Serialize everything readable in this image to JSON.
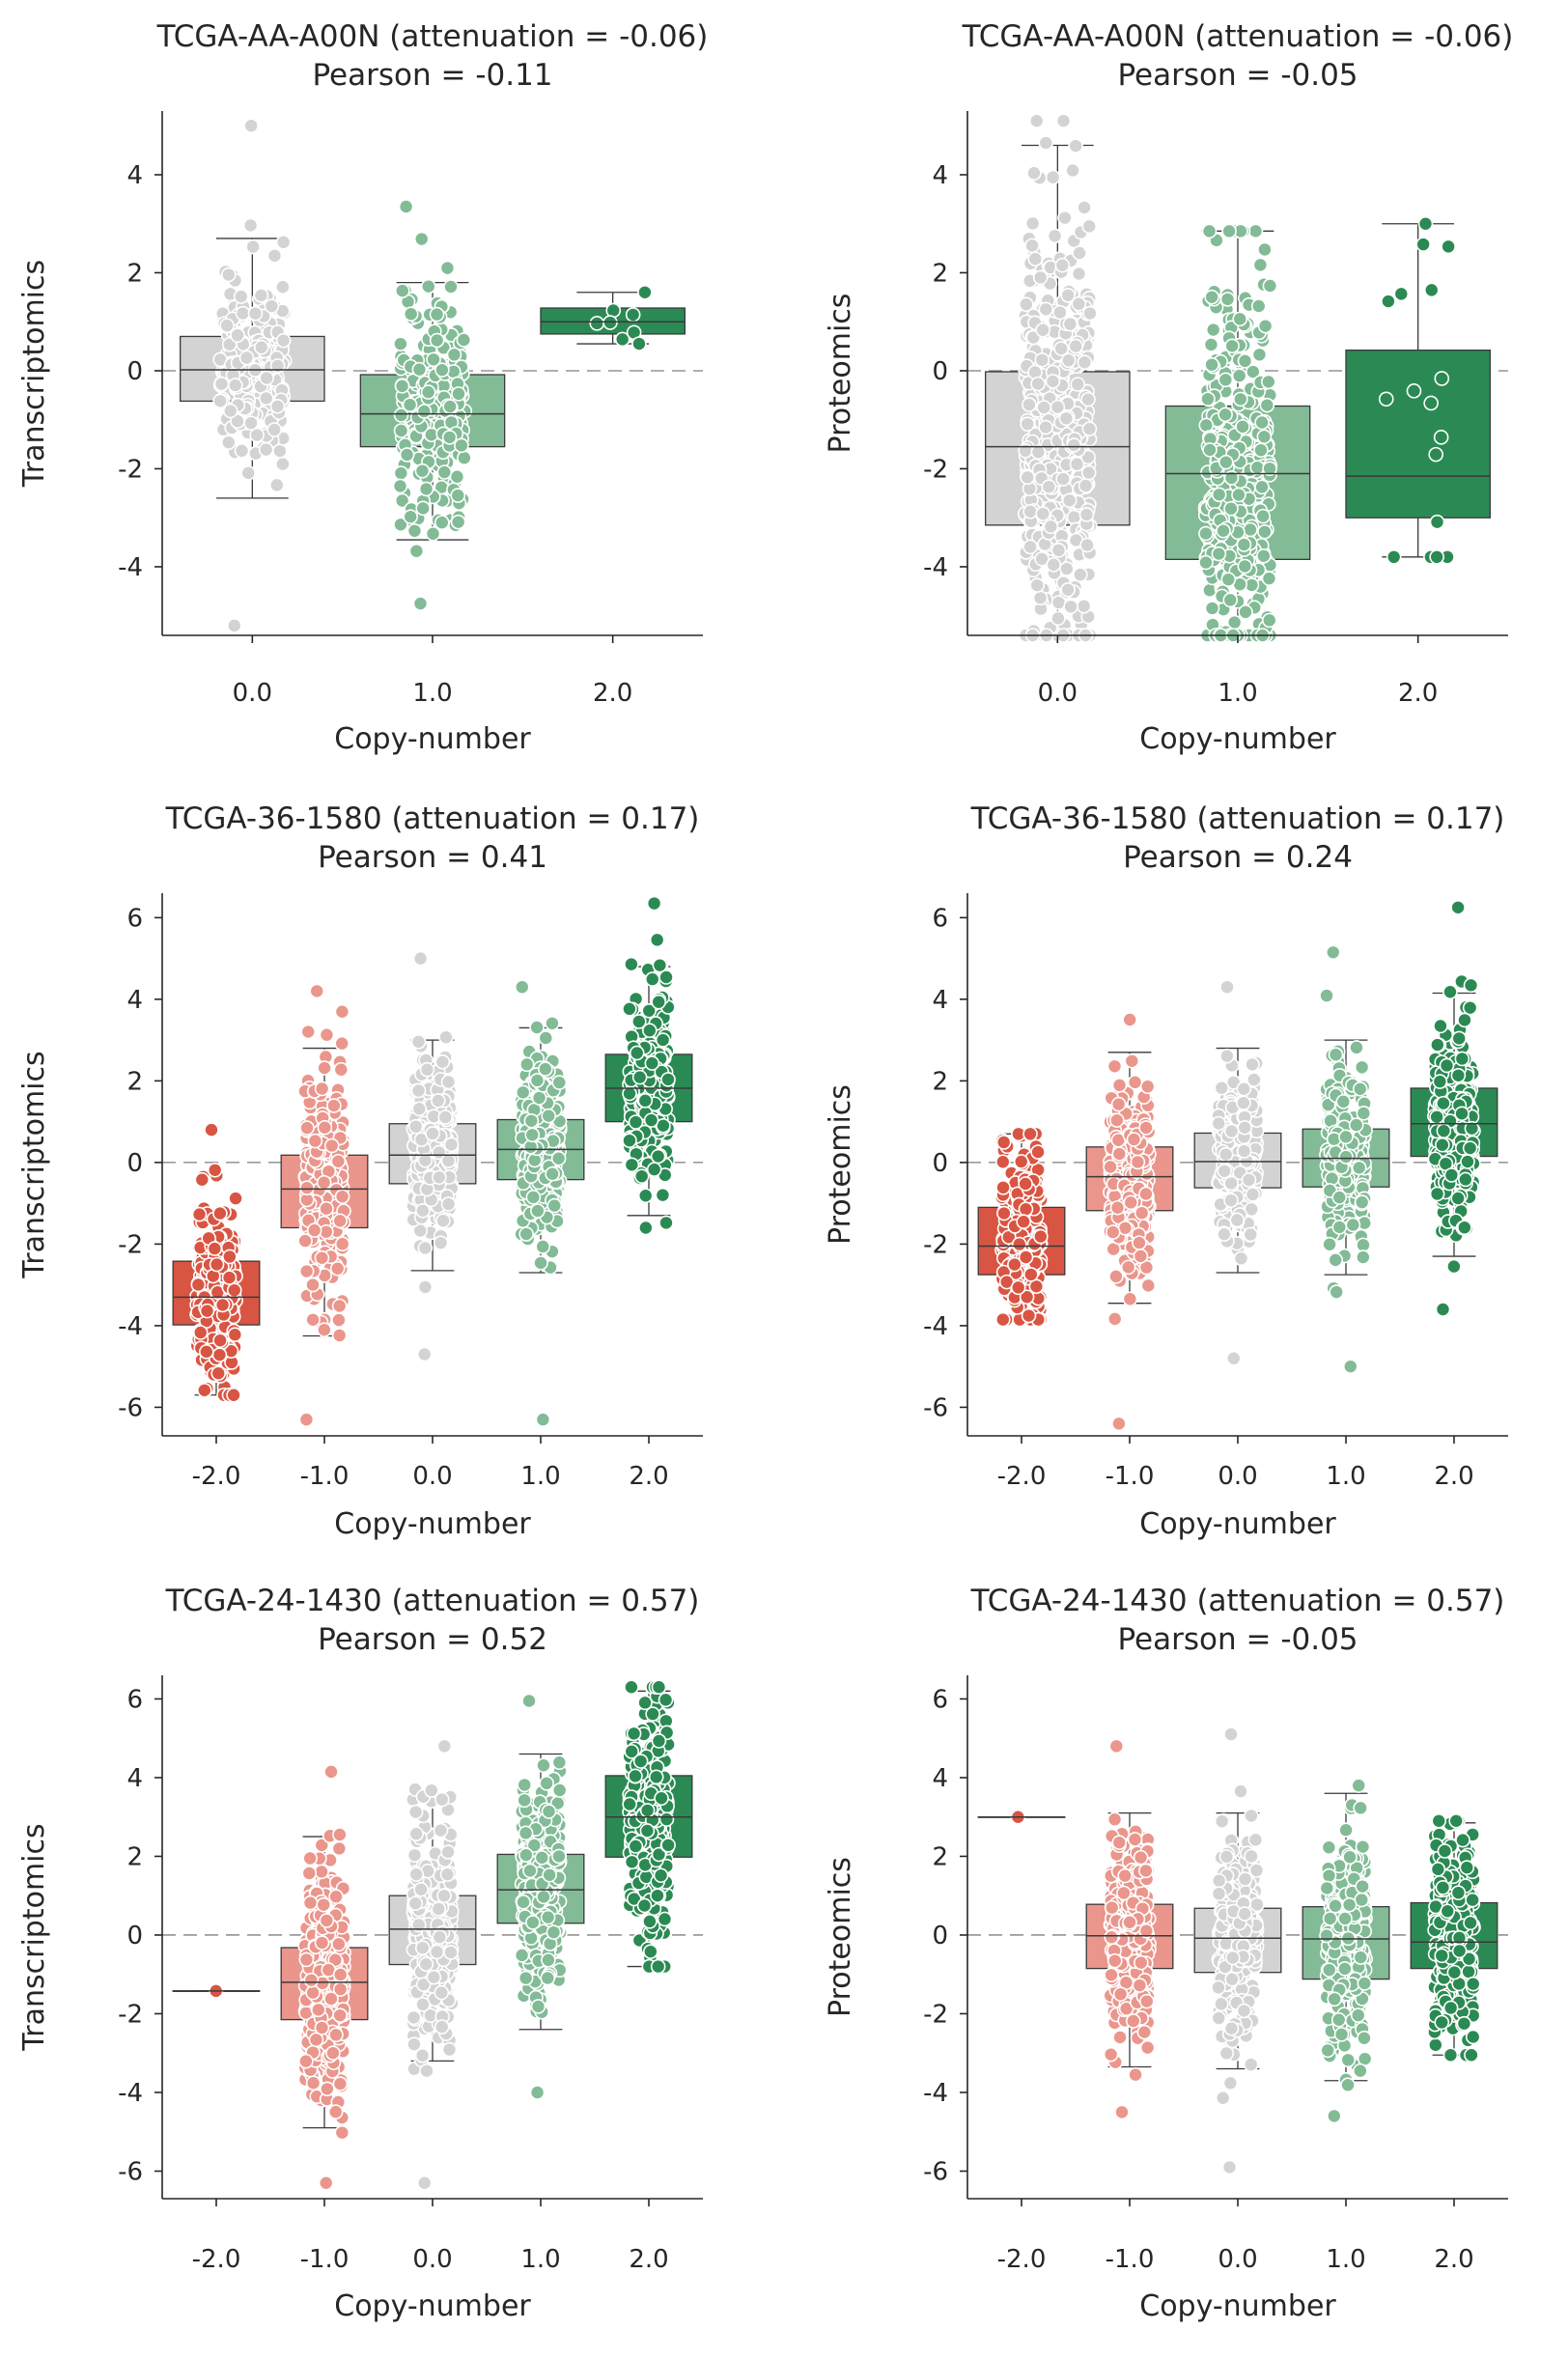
{
  "colors": {
    "cn_-2": "#d95543",
    "cn_-1": "#ea968c",
    "cn_0": "#d3d3d3",
    "cn_1": "#82bb96",
    "cn_2": "#2b8a53",
    "axis": "#262626",
    "zero_line": "#7f7f7f"
  },
  "chart_data": [
    {
      "type": "box",
      "title": "TCGA-AA-A00N (attenuation = -0.06)",
      "subtitle": "Pearson = -0.11",
      "xlabel": "Copy-number",
      "ylabel": "Transcriptomics",
      "categories": [
        "0.0",
        "1.0",
        "2.0"
      ],
      "yticks": [
        -4,
        -2,
        0,
        2,
        4
      ],
      "ylim": [
        -5.4,
        5.3
      ],
      "boxes": [
        {
          "category": "0.0",
          "q1": -0.62,
          "median": 0.02,
          "q3": 0.7,
          "whisker_low": -2.6,
          "whisker_high": 2.7,
          "min": -5.2,
          "max": 5.0
        },
        {
          "category": "1.0",
          "q1": -1.55,
          "median": -0.88,
          "q3": -0.08,
          "whisker_low": -3.45,
          "whisker_high": 1.8,
          "min": -4.75,
          "max": 3.35
        },
        {
          "category": "2.0",
          "q1": 0.75,
          "median": 1.0,
          "q3": 1.28,
          "whisker_low": 0.55,
          "whisker_high": 1.6,
          "min": 0.55,
          "max": 1.6
        }
      ]
    },
    {
      "type": "box",
      "title": "TCGA-AA-A00N (attenuation = -0.06)",
      "subtitle": "Pearson = -0.05",
      "xlabel": "Copy-number",
      "ylabel": "Proteomics",
      "categories": [
        "0.0",
        "1.0",
        "2.0"
      ],
      "yticks": [
        -4,
        -2,
        0,
        2,
        4
      ],
      "ylim": [
        -5.4,
        5.3
      ],
      "boxes": [
        {
          "category": "0.0",
          "q1": -3.15,
          "median": -1.55,
          "q3": -0.02,
          "whisker_low": -5.4,
          "whisker_high": 4.6,
          "min": -5.4,
          "max": 5.1
        },
        {
          "category": "1.0",
          "q1": -3.85,
          "median": -2.1,
          "q3": -0.72,
          "whisker_low": -5.4,
          "whisker_high": 2.85,
          "min": -5.4,
          "max": 2.85
        },
        {
          "category": "2.0",
          "q1": -3.0,
          "median": -2.15,
          "q3": 0.42,
          "whisker_low": -3.8,
          "whisker_high": 3.0,
          "min": -3.8,
          "max": 3.0
        }
      ]
    },
    {
      "type": "box",
      "title": "TCGA-36-1580 (attenuation = 0.17)",
      "subtitle": "Pearson = 0.41",
      "xlabel": "Copy-number",
      "ylabel": "Transcriptomics",
      "categories": [
        "-2.0",
        "-1.0",
        "0.0",
        "1.0",
        "2.0"
      ],
      "yticks": [
        -6,
        -4,
        -2,
        0,
        2,
        4,
        6
      ],
      "ylim": [
        -6.7,
        6.6
      ],
      "boxes": [
        {
          "category": "-2.0",
          "q1": -3.98,
          "median": -3.3,
          "q3": -2.42,
          "whisker_low": -5.7,
          "whisker_high": -1.25,
          "min": -5.7,
          "max": 0.8
        },
        {
          "category": "-1.0",
          "q1": -1.6,
          "median": -0.65,
          "q3": 0.18,
          "whisker_low": -4.25,
          "whisker_high": 2.8,
          "min": -6.3,
          "max": 4.2
        },
        {
          "category": "0.0",
          "q1": -0.52,
          "median": 0.18,
          "q3": 0.95,
          "whisker_low": -2.65,
          "whisker_high": 3.0,
          "min": -4.7,
          "max": 5.0
        },
        {
          "category": "1.0",
          "q1": -0.42,
          "median": 0.32,
          "q3": 1.05,
          "whisker_low": -2.7,
          "whisker_high": 3.3,
          "min": -6.3,
          "max": 4.3
        },
        {
          "category": "2.0",
          "q1": 1.0,
          "median": 1.82,
          "q3": 2.65,
          "whisker_low": -1.3,
          "whisker_high": 4.8,
          "min": -1.6,
          "max": 6.35
        }
      ]
    },
    {
      "type": "box",
      "title": "TCGA-36-1580 (attenuation = 0.17)",
      "subtitle": "Pearson = 0.24",
      "xlabel": "Copy-number",
      "ylabel": "Proteomics",
      "categories": [
        "-2.0",
        "-1.0",
        "0.0",
        "1.0",
        "2.0"
      ],
      "yticks": [
        -6,
        -4,
        -2,
        0,
        2,
        4,
        6
      ],
      "ylim": [
        -6.7,
        6.6
      ],
      "boxes": [
        {
          "category": "-2.0",
          "q1": -2.75,
          "median": -2.05,
          "q3": -1.1,
          "whisker_low": -3.85,
          "whisker_high": 0.7,
          "min": -3.85,
          "max": 0.7
        },
        {
          "category": "-1.0",
          "q1": -1.18,
          "median": -0.35,
          "q3": 0.38,
          "whisker_low": -3.45,
          "whisker_high": 2.7,
          "min": -6.4,
          "max": 3.5
        },
        {
          "category": "0.0",
          "q1": -0.62,
          "median": 0.02,
          "q3": 0.72,
          "whisker_low": -2.7,
          "whisker_high": 2.8,
          "min": -4.8,
          "max": 4.3
        },
        {
          "category": "1.0",
          "q1": -0.6,
          "median": 0.1,
          "q3": 0.82,
          "whisker_low": -2.75,
          "whisker_high": 3.0,
          "min": -5.0,
          "max": 5.15
        },
        {
          "category": "2.0",
          "q1": 0.15,
          "median": 0.95,
          "q3": 1.82,
          "whisker_low": -2.3,
          "whisker_high": 4.15,
          "min": -3.6,
          "max": 6.25
        }
      ]
    },
    {
      "type": "box",
      "title": "TCGA-24-1430 (attenuation = 0.57)",
      "subtitle": "Pearson = 0.52",
      "xlabel": "Copy-number",
      "ylabel": "Transcriptomics",
      "categories": [
        "-2.0",
        "-1.0",
        "0.0",
        "1.0",
        "2.0"
      ],
      "yticks": [
        -6,
        -4,
        -2,
        0,
        2,
        4,
        6
      ],
      "ylim": [
        -6.7,
        6.6
      ],
      "boxes": [
        {
          "category": "-2.0",
          "q1": -1.42,
          "median": -1.42,
          "q3": -1.42,
          "whisker_low": -1.42,
          "whisker_high": -1.42,
          "min": -1.42,
          "max": -1.42
        },
        {
          "category": "-1.0",
          "q1": -2.15,
          "median": -1.2,
          "q3": -0.32,
          "whisker_low": -4.9,
          "whisker_high": 2.5,
          "min": -6.3,
          "max": 4.15
        },
        {
          "category": "0.0",
          "q1": -0.75,
          "median": 0.15,
          "q3": 1.0,
          "whisker_low": -3.2,
          "whisker_high": 3.6,
          "min": -6.3,
          "max": 4.8
        },
        {
          "category": "1.0",
          "q1": 0.3,
          "median": 1.15,
          "q3": 2.05,
          "whisker_low": -2.4,
          "whisker_high": 4.6,
          "min": -4.0,
          "max": 5.95
        },
        {
          "category": "2.0",
          "q1": 1.98,
          "median": 3.0,
          "q3": 4.05,
          "whisker_low": -0.8,
          "whisker_high": 6.2,
          "min": -0.8,
          "max": 6.3
        }
      ]
    },
    {
      "type": "box",
      "title": "TCGA-24-1430 (attenuation = 0.57)",
      "subtitle": "Pearson = -0.05",
      "xlabel": "Copy-number",
      "ylabel": "Proteomics",
      "categories": [
        "-2.0",
        "-1.0",
        "0.0",
        "1.0",
        "2.0"
      ],
      "yticks": [
        -6,
        -4,
        -2,
        0,
        2,
        4,
        6
      ],
      "ylim": [
        -6.7,
        6.6
      ],
      "boxes": [
        {
          "category": "-2.0",
          "q1": 3.0,
          "median": 3.0,
          "q3": 3.0,
          "whisker_low": 3.0,
          "whisker_high": 3.0,
          "min": 3.0,
          "max": 3.0
        },
        {
          "category": "-1.0",
          "q1": -0.85,
          "median": -0.02,
          "q3": 0.78,
          "whisker_low": -3.35,
          "whisker_high": 3.1,
          "min": -4.5,
          "max": 4.8
        },
        {
          "category": "0.0",
          "q1": -0.95,
          "median": -0.08,
          "q3": 0.68,
          "whisker_low": -3.4,
          "whisker_high": 3.1,
          "min": -5.9,
          "max": 5.1
        },
        {
          "category": "1.0",
          "q1": -1.12,
          "median": -0.1,
          "q3": 0.72,
          "whisker_low": -3.7,
          "whisker_high": 3.6,
          "min": -4.6,
          "max": 3.8
        },
        {
          "category": "2.0",
          "q1": -0.85,
          "median": -0.18,
          "q3": 0.82,
          "whisker_low": -3.05,
          "whisker_high": 2.85,
          "min": -3.05,
          "max": 2.9
        }
      ]
    }
  ]
}
